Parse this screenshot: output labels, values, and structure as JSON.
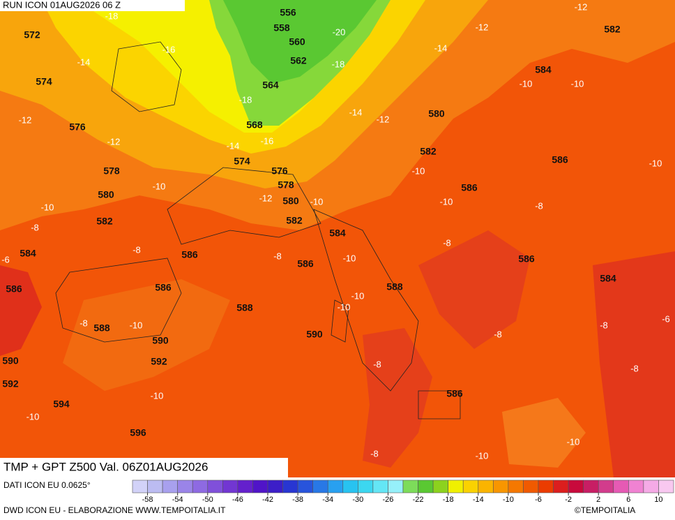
{
  "header": {
    "run": "RUN ICON 01AUG2026 06 Z"
  },
  "footer": {
    "title": "TMP + GPT Z500 Val. 06Z01AUG2026",
    "source": "DATI ICON EU 0.0625°",
    "credit": "DWD ICON EU - ELABORAZIONE WWW.TEMPOITALIA.IT",
    "logo": "©TEMPOITALIA"
  },
  "height_labels": [
    572,
    574,
    576,
    578,
    580,
    582,
    584,
    586,
    588,
    590,
    592,
    594,
    596,
    556,
    558,
    560,
    562,
    564,
    568,
    574,
    576,
    578,
    580,
    582,
    584,
    586,
    588,
    590,
    592,
    590,
    588,
    586,
    586,
    580,
    582,
    586,
    584,
    582,
    586,
    586,
    584,
    586
  ],
  "temperature_labels": [
    -18,
    -16,
    -14,
    -12,
    -12,
    -18,
    -14,
    -16,
    -20,
    -18,
    -14,
    -12,
    -14,
    -12,
    -12,
    -10,
    -10,
    -10,
    -10,
    -10,
    -10,
    -12,
    -10,
    -10,
    -8,
    -8,
    -8,
    -6,
    -10,
    -8,
    -8,
    -10,
    -10,
    -8,
    -10,
    -8,
    -6,
    -8,
    -8,
    -8,
    -10,
    -10,
    -8,
    -10,
    -10
  ],
  "colorbar": {
    "range": [
      -60,
      12
    ],
    "ticks": [
      -58,
      -54,
      -50,
      -46,
      -42,
      -38,
      -34,
      -30,
      -26,
      -22,
      -18,
      -14,
      -10,
      -6,
      -2,
      2,
      6,
      10
    ],
    "colors": [
      "#d2d2f8",
      "#bcbcf2",
      "#a8a0ee",
      "#9a84e8",
      "#8e6ae2",
      "#8050da",
      "#7236d2",
      "#6420cc",
      "#5014c8",
      "#3c1ec8",
      "#2836d2",
      "#2854dc",
      "#2878e6",
      "#28a0f0",
      "#28c3f0",
      "#3cd7f0",
      "#64e6f5",
      "#96f0fa",
      "#7ddc5a",
      "#5ac832",
      "#8cd21e",
      "#f0f000",
      "#fad200",
      "#fab400",
      "#f89600",
      "#f57800",
      "#f05a00",
      "#eb3c00",
      "#dc1e1e",
      "#c80a3c",
      "#c81e64",
      "#d23c8c",
      "#e65ab4",
      "#f082d2",
      "#f5aae6",
      "#f8c8f0"
    ]
  }
}
